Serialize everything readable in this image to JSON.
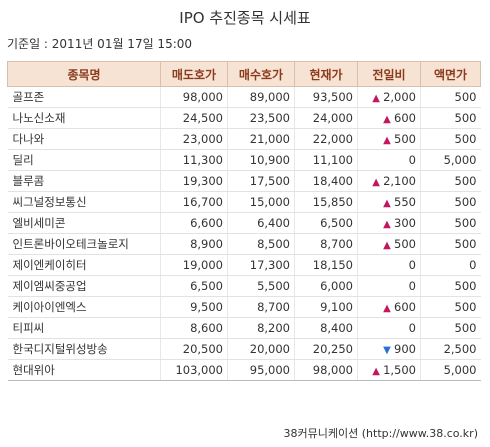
{
  "title": "IPO 추진종목 시세표",
  "date": "기준일 : 2011년 01월 17일 15:00",
  "columns": [
    "종목명",
    "매도호가",
    "매수호가",
    "현재가",
    "전일비",
    "액면가"
  ],
  "rows": [
    {
      "name": "골프존",
      "ask": "98,000",
      "bid": "89,000",
      "price": "93,500",
      "dir": "up",
      "change": "2,000",
      "par": "500"
    },
    {
      "name": "나노신소재",
      "ask": "24,500",
      "bid": "23,500",
      "price": "24,000",
      "dir": "up",
      "change": "600",
      "par": "500"
    },
    {
      "name": "다나와",
      "ask": "23,000",
      "bid": "21,000",
      "price": "22,000",
      "dir": "up",
      "change": "500",
      "par": "500"
    },
    {
      "name": "딜리",
      "ask": "11,300",
      "bid": "10,900",
      "price": "11,100",
      "dir": "none",
      "change": "0",
      "par": "5,000"
    },
    {
      "name": "블루콤",
      "ask": "19,300",
      "bid": "17,500",
      "price": "18,400",
      "dir": "up",
      "change": "2,100",
      "par": "500"
    },
    {
      "name": "씨그널정보통신",
      "ask": "16,700",
      "bid": "15,000",
      "price": "15,850",
      "dir": "up",
      "change": "550",
      "par": "500"
    },
    {
      "name": "엘비세미콘",
      "ask": "6,600",
      "bid": "6,400",
      "price": "6,500",
      "dir": "up",
      "change": "300",
      "par": "500"
    },
    {
      "name": "인트론바이오테크놀로지",
      "ask": "8,900",
      "bid": "8,500",
      "price": "8,700",
      "dir": "up",
      "change": "500",
      "par": "500"
    },
    {
      "name": "제이엔케이히터",
      "ask": "19,000",
      "bid": "17,300",
      "price": "18,150",
      "dir": "none",
      "change": "0",
      "par": "0"
    },
    {
      "name": "제이엠씨중공업",
      "ask": "6,500",
      "bid": "5,500",
      "price": "6,000",
      "dir": "none",
      "change": "0",
      "par": "500"
    },
    {
      "name": "케이아이엔엑스",
      "ask": "9,500",
      "bid": "8,700",
      "price": "9,100",
      "dir": "up",
      "change": "600",
      "par": "500"
    },
    {
      "name": "티피씨",
      "ask": "8,600",
      "bid": "8,200",
      "price": "8,400",
      "dir": "none",
      "change": "0",
      "par": "500"
    },
    {
      "name": "한국디지털위성방송",
      "ask": "20,500",
      "bid": "20,000",
      "price": "20,250",
      "dir": "down",
      "change": "900",
      "par": "2,500"
    },
    {
      "name": "현대위아",
      "ask": "103,000",
      "bid": "95,000",
      "price": "98,000",
      "dir": "up",
      "change": "1,500",
      "par": "5,000"
    }
  ],
  "footer": "38커뮤니케이션 (http://www.38.co.kr)"
}
